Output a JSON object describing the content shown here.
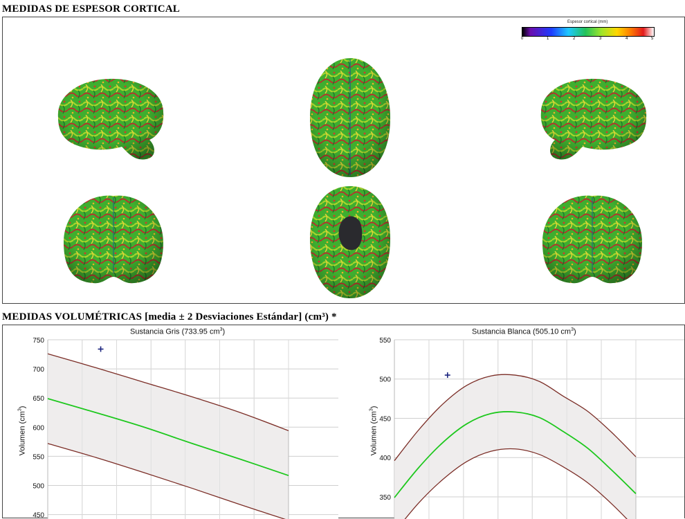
{
  "cortical": {
    "title": "MEDIDAS DE ESPESOR CORTICAL",
    "colorbar": {
      "title": "Espesor cortical (mm)",
      "ticks": [
        "0",
        "1",
        "2",
        "3",
        "4",
        "5"
      ],
      "colors": [
        "#000000",
        "#6a0dad",
        "#1e3cff",
        "#1ec8ff",
        "#22c25a",
        "#9ee52b",
        "#ffd700",
        "#ff7f00",
        "#e41a1c",
        "#ffffff"
      ]
    },
    "views": [
      "left-lateral",
      "superior",
      "right-lateral",
      "anterior",
      "inferior",
      "posterior"
    ]
  },
  "volumetric": {
    "title": "MEDIDAS VOLUMÉTRICAS [media ± 2 Desviaciones Estándar] (cm³) *"
  },
  "charts": {
    "gm": {
      "title_main": "Sustancia Gris (733.95 cm",
      "title_sup": "3",
      "title_end": ")",
      "ylabel_main": "Volumen (cm",
      "ylabel_sup": "3",
      "ylabel_end": ")"
    },
    "wm": {
      "title_main": "Sustancia Blanca (505.10 cm",
      "title_sup": "3",
      "title_end": ")",
      "ylabel_main": "Volumen (cm",
      "ylabel_sup": "3",
      "ylabel_end": ")"
    }
  },
  "chart_data": [
    {
      "type": "line",
      "title": "Sustancia Gris (733.95 cm3)",
      "ylabel": "Volumen (cm3)",
      "ylim": [
        440,
        750
      ],
      "yticks": [
        450,
        500,
        550,
        600,
        650,
        700,
        750
      ],
      "xlim": [
        0,
        100
      ],
      "xgrid": [
        0,
        14.3,
        28.6,
        42.9,
        57.1,
        71.4,
        85.7,
        100
      ],
      "grid": true,
      "x": [
        0,
        20,
        40,
        60,
        80,
        100
      ],
      "series": [
        {
          "role": "upper",
          "color": "#7b2d26",
          "values": [
            726,
            702,
            677,
            652,
            625,
            594
          ]
        },
        {
          "role": "mean",
          "color": "#1ec81e",
          "values": [
            649,
            625,
            600,
            572,
            545,
            517
          ]
        },
        {
          "role": "lower",
          "color": "#7b2d26",
          "values": [
            572,
            548,
            522,
            495,
            467,
            440
          ]
        }
      ],
      "patient_point": {
        "x": 22,
        "y": 734,
        "color": "#1a237e"
      }
    },
    {
      "type": "line",
      "title": "Sustancia Blanca (505.10 cm3)",
      "ylabel": "Volumen (cm3)",
      "ylim": [
        320,
        550
      ],
      "yticks": [
        350,
        400,
        450,
        500,
        550
      ],
      "xlim": [
        0,
        100
      ],
      "xgrid": [
        0,
        14.3,
        28.6,
        42.9,
        57.1,
        71.4,
        85.7,
        100
      ],
      "grid": true,
      "x": [
        0,
        10,
        20,
        30,
        40,
        50,
        60,
        70,
        80,
        90,
        100
      ],
      "series": [
        {
          "role": "upper",
          "color": "#7b2d26",
          "values": [
            396,
            435,
            468,
            492,
            504,
            505,
            497,
            478,
            459,
            432,
            401
          ]
        },
        {
          "role": "mean",
          "color": "#1ec81e",
          "values": [
            349,
            387,
            419,
            443,
            456,
            458,
            451,
            433,
            412,
            384,
            354
          ]
        },
        {
          "role": "lower",
          "color": "#7b2d26",
          "values": [
            305,
            342,
            372,
            395,
            408,
            411,
            404,
            388,
            368,
            341,
            310
          ]
        }
      ],
      "patient_point": {
        "x": 22,
        "y": 505,
        "color": "#1a237e"
      }
    }
  ]
}
